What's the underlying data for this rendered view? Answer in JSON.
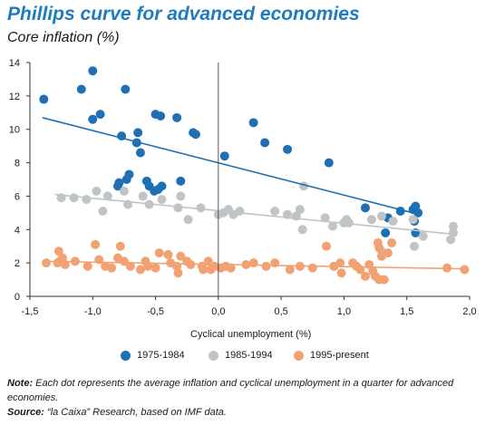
{
  "title": "Phillips curve for advanced economies",
  "subtitle": "Core inflation (%)",
  "note_label": "Note:",
  "note_text": "Each dot represents the average inflation and cyclical unemployment in a quarter for advanced economies.",
  "source_label": "Source:",
  "source_text": "“la Caixa” Research, based on IMF data.",
  "colors": {
    "s1": "#1f6fb4",
    "s2": "#bfc4c7",
    "s3": "#f2a272",
    "axis": "#333333"
  },
  "chart_data": {
    "type": "scatter",
    "xlabel": "Cyclical unemployment (%)",
    "ylabel": "Core inflation (%)",
    "xlim": [
      -1.5,
      2.0
    ],
    "ylim": [
      0,
      14
    ],
    "x_ticks": [
      -1.5,
      -1.0,
      -0.5,
      0.0,
      0.5,
      1.0,
      1.5,
      2.0
    ],
    "x_tick_labels": [
      "-1,5",
      "-1,0",
      "-0,5",
      "0,0",
      "0,5",
      "1,0",
      "1,5",
      "2,0"
    ],
    "y_ticks": [
      0,
      2,
      4,
      6,
      8,
      10,
      12,
      14
    ],
    "y_tick_labels": [
      "0",
      "2",
      "4",
      "6",
      "8",
      "10",
      "12",
      "14"
    ],
    "grid": false,
    "legend_position": "bottom",
    "series": [
      {
        "name": "1975-1984",
        "color_key": "s1",
        "trend": [
          [
            -1.4,
            10.7
          ],
          [
            1.6,
            4.9
          ]
        ],
        "points": [
          [
            -1.39,
            11.8
          ],
          [
            -1.0,
            13.5
          ],
          [
            -1.09,
            12.4
          ],
          [
            -0.94,
            10.9
          ],
          [
            -1.0,
            10.6
          ],
          [
            -0.74,
            12.4
          ],
          [
            -0.77,
            9.6
          ],
          [
            -0.65,
            9.2
          ],
          [
            -0.64,
            9.8
          ],
          [
            -0.62,
            8.6
          ],
          [
            -0.57,
            6.9
          ],
          [
            -0.55,
            6.6
          ],
          [
            -0.71,
            7.3
          ],
          [
            -0.73,
            7.0
          ],
          [
            -0.79,
            6.8
          ],
          [
            -0.8,
            6.6
          ],
          [
            -0.51,
            6.3
          ],
          [
            -0.48,
            6.4
          ],
          [
            -0.45,
            6.6
          ],
          [
            -0.5,
            10.9
          ],
          [
            -0.46,
            10.8
          ],
          [
            -0.33,
            10.7
          ],
          [
            -0.3,
            6.9
          ],
          [
            -0.2,
            9.8
          ],
          [
            -0.18,
            9.7
          ],
          [
            0.05,
            8.4
          ],
          [
            0.28,
            10.4
          ],
          [
            0.37,
            9.2
          ],
          [
            0.55,
            8.8
          ],
          [
            0.88,
            8.0
          ],
          [
            1.17,
            5.3
          ],
          [
            1.35,
            4.7
          ],
          [
            1.33,
            3.8
          ],
          [
            1.45,
            5.1
          ],
          [
            1.55,
            5.2
          ],
          [
            1.57,
            5.4
          ],
          [
            1.59,
            5.0
          ],
          [
            1.56,
            4.5
          ],
          [
            1.57,
            3.8
          ]
        ]
      },
      {
        "name": "1985-1994",
        "color_key": "s2",
        "trend": [
          [
            -1.3,
            6.1
          ],
          [
            1.9,
            3.7
          ]
        ],
        "points": [
          [
            -1.25,
            5.9
          ],
          [
            -1.15,
            5.9
          ],
          [
            -1.05,
            5.8
          ],
          [
            -0.97,
            6.3
          ],
          [
            -0.92,
            5.1
          ],
          [
            -0.88,
            6.0
          ],
          [
            -0.75,
            6.3
          ],
          [
            -0.72,
            5.5
          ],
          [
            -0.6,
            6.0
          ],
          [
            -0.55,
            5.5
          ],
          [
            -0.45,
            5.8
          ],
          [
            -0.32,
            5.3
          ],
          [
            -0.3,
            6.0
          ],
          [
            -0.24,
            4.6
          ],
          [
            -0.14,
            5.3
          ],
          [
            0.0,
            4.9
          ],
          [
            0.04,
            5.0
          ],
          [
            0.08,
            5.2
          ],
          [
            0.12,
            4.9
          ],
          [
            0.17,
            5.1
          ],
          [
            0.45,
            5.1
          ],
          [
            0.55,
            4.9
          ],
          [
            0.62,
            4.8
          ],
          [
            0.65,
            5.2
          ],
          [
            0.67,
            4.0
          ],
          [
            0.68,
            6.6
          ],
          [
            0.85,
            4.7
          ],
          [
            0.91,
            4.2
          ],
          [
            1.0,
            4.4
          ],
          [
            1.02,
            4.6
          ],
          [
            1.04,
            4.4
          ],
          [
            1.22,
            4.6
          ],
          [
            1.3,
            4.8
          ],
          [
            1.3,
            2.7
          ],
          [
            1.39,
            4.5
          ],
          [
            1.55,
            4.6
          ],
          [
            1.56,
            3.0
          ],
          [
            1.63,
            3.6
          ],
          [
            1.87,
            4.2
          ],
          [
            1.87,
            3.8
          ],
          [
            1.85,
            3.4
          ]
        ]
      },
      {
        "name": "1995-present",
        "color_key": "s3",
        "trend": [
          [
            -1.4,
            2.1
          ],
          [
            1.95,
            1.65
          ]
        ],
        "points": [
          [
            -1.37,
            2.0
          ],
          [
            -1.27,
            2.7
          ],
          [
            -1.26,
            2.1
          ],
          [
            -1.24,
            2.3
          ],
          [
            -1.22,
            1.9
          ],
          [
            -1.28,
            2.0
          ],
          [
            -1.14,
            2.1
          ],
          [
            -1.04,
            1.8
          ],
          [
            -0.98,
            3.1
          ],
          [
            -0.95,
            2.2
          ],
          [
            -0.9,
            1.8
          ],
          [
            -0.85,
            1.7
          ],
          [
            -0.8,
            2.3
          ],
          [
            -0.78,
            3.0
          ],
          [
            -0.75,
            2.1
          ],
          [
            -0.7,
            1.8
          ],
          [
            -0.62,
            1.6
          ],
          [
            -0.58,
            2.1
          ],
          [
            -0.56,
            1.8
          ],
          [
            -0.5,
            1.7
          ],
          [
            -0.47,
            2.6
          ],
          [
            -0.4,
            2.5
          ],
          [
            -0.38,
            2.0
          ],
          [
            -0.33,
            1.8
          ],
          [
            -0.32,
            1.4
          ],
          [
            -0.3,
            2.4
          ],
          [
            -0.25,
            2.1
          ],
          [
            -0.22,
            1.9
          ],
          [
            -0.13,
            1.8
          ],
          [
            -0.12,
            1.6
          ],
          [
            -0.08,
            2.1
          ],
          [
            -0.06,
            1.6
          ],
          [
            -0.03,
            1.8
          ],
          [
            0.02,
            1.7
          ],
          [
            0.06,
            1.8
          ],
          [
            0.1,
            1.7
          ],
          [
            0.22,
            1.9
          ],
          [
            0.28,
            2.0
          ],
          [
            0.38,
            1.8
          ],
          [
            0.45,
            2.0
          ],
          [
            0.57,
            1.6
          ],
          [
            0.65,
            1.8
          ],
          [
            0.75,
            1.7
          ],
          [
            0.86,
            3.0
          ],
          [
            0.92,
            1.8
          ],
          [
            0.97,
            2.0
          ],
          [
            0.98,
            1.4
          ],
          [
            1.07,
            2.0
          ],
          [
            1.1,
            1.8
          ],
          [
            1.13,
            1.6
          ],
          [
            1.17,
            1.2
          ],
          [
            1.2,
            1.9
          ],
          [
            1.23,
            1.5
          ],
          [
            1.27,
            3.2
          ],
          [
            1.28,
            2.9
          ],
          [
            1.3,
            2.4
          ],
          [
            1.35,
            2.6
          ],
          [
            1.38,
            3.2
          ],
          [
            1.25,
            1.2
          ],
          [
            1.28,
            1.0
          ],
          [
            1.32,
            1.0
          ],
          [
            1.82,
            1.7
          ],
          [
            1.96,
            1.6
          ]
        ]
      }
    ]
  }
}
